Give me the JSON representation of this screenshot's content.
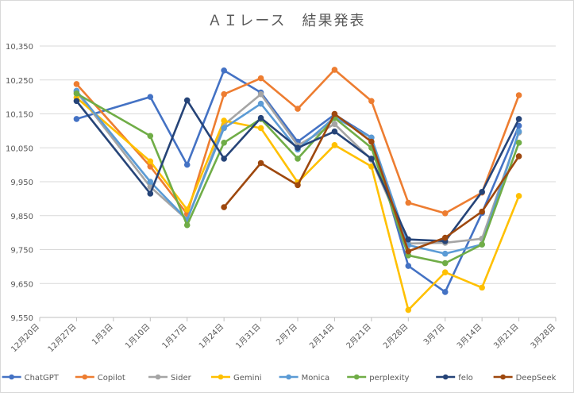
{
  "chart_data": {
    "type": "line",
    "title": "ＡＩレース　結果発表",
    "xlabel": "",
    "ylabel": "",
    "x": [
      "12月20日",
      "12月27日",
      "1月3日",
      "1月10日",
      "1月17日",
      "1月24日",
      "1月31日",
      "2月7日",
      "2月14日",
      "2月21日",
      "2月28日",
      "3月7日",
      "3月14日",
      "3月21日",
      "3月28日"
    ],
    "y_ticks": [
      "9,550",
      "9,650",
      "9,750",
      "9,850",
      "9,950",
      "10,050",
      "10,150",
      "10,250",
      "10,350"
    ],
    "ylim": [
      9550,
      10350
    ],
    "grid": "horizontal",
    "legend_position": "bottom",
    "series": [
      {
        "name": "ChatGPT",
        "color": "#4472C4",
        "values": [
          null,
          10135,
          null,
          10200,
          10000,
          10278,
          10213,
          10068,
          10148,
          10080,
          9702,
          9625,
          9858,
          10115,
          null
        ]
      },
      {
        "name": "Copilot",
        "color": "#ED7D31",
        "values": [
          null,
          10238,
          null,
          9995,
          9855,
          10208,
          10255,
          10165,
          10280,
          10188,
          9888,
          9857,
          9918,
          10205,
          null
        ]
      },
      {
        "name": "Sider",
        "color": "#A5A5A5",
        "values": [
          null,
          10215,
          null,
          9935,
          9838,
          10118,
          10208,
          10057,
          10120,
          10015,
          9768,
          9770,
          9782,
          10095,
          null
        ]
      },
      {
        "name": "Gemini",
        "color": "#FFC000",
        "values": [
          null,
          10198,
          null,
          10010,
          9868,
          10130,
          10108,
          9948,
          10058,
          9995,
          9572,
          9683,
          9638,
          9908,
          null
        ]
      },
      {
        "name": "Monica",
        "color": "#5B9BD5",
        "values": [
          null,
          10218,
          null,
          9950,
          9838,
          10108,
          10180,
          10045,
          10140,
          10080,
          9763,
          9738,
          9765,
          10098,
          null
        ]
      },
      {
        "name": "perplexity",
        "color": "#70AD47",
        "values": [
          null,
          10210,
          null,
          10085,
          9822,
          10065,
          10135,
          10018,
          10138,
          10050,
          9733,
          9710,
          9765,
          10065,
          null
        ]
      },
      {
        "name": "felo",
        "color": "#264478",
        "values": [
          null,
          10188,
          null,
          9915,
          10190,
          10018,
          10138,
          10050,
          10098,
          10018,
          9780,
          9775,
          9920,
          10135,
          null
        ]
      },
      {
        "name": "DeepSeek",
        "color": "#9E480E",
        "values": [
          null,
          null,
          null,
          null,
          null,
          9875,
          10005,
          9940,
          10150,
          10068,
          9745,
          9785,
          9862,
          10025,
          null
        ]
      }
    ]
  }
}
